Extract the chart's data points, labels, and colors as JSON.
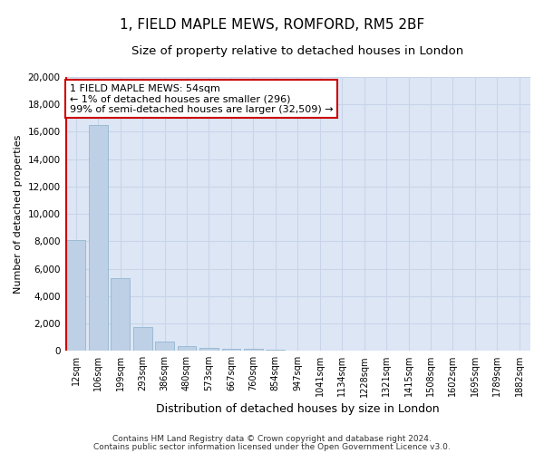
{
  "title": "1, FIELD MAPLE MEWS, ROMFORD, RM5 2BF",
  "subtitle": "Size of property relative to detached houses in London",
  "xlabel": "Distribution of detached houses by size in London",
  "ylabel": "Number of detached properties",
  "categories": [
    "12sqm",
    "106sqm",
    "199sqm",
    "293sqm",
    "386sqm",
    "480sqm",
    "573sqm",
    "667sqm",
    "760sqm",
    "854sqm",
    "947sqm",
    "1041sqm",
    "1134sqm",
    "1228sqm",
    "1321sqm",
    "1415sqm",
    "1508sqm",
    "1602sqm",
    "1695sqm",
    "1789sqm",
    "1882sqm"
  ],
  "values": [
    8100,
    16500,
    5300,
    1750,
    700,
    350,
    200,
    150,
    130,
    110,
    0,
    0,
    0,
    0,
    0,
    0,
    0,
    0,
    0,
    0,
    0
  ],
  "bar_color": "#bed0e6",
  "bar_edge_color": "#93b5d0",
  "highlight_color": "#cc0000",
  "ylim": [
    0,
    20000
  ],
  "yticks": [
    0,
    2000,
    4000,
    6000,
    8000,
    10000,
    12000,
    14000,
    16000,
    18000,
    20000
  ],
  "annotation_text": "1 FIELD MAPLE MEWS: 54sqm\n← 1% of detached houses are smaller (296)\n99% of semi-detached houses are larger (32,509) →",
  "annotation_box_color": "#ffffff",
  "annotation_box_edge": "#cc0000",
  "footer_line1": "Contains HM Land Registry data © Crown copyright and database right 2024.",
  "footer_line2": "Contains public sector information licensed under the Open Government Licence v3.0.",
  "grid_color": "#c8d4e8",
  "bg_color": "#dde6f5",
  "title_fontsize": 11,
  "subtitle_fontsize": 9.5,
  "ylabel_fontsize": 8,
  "xlabel_fontsize": 9
}
